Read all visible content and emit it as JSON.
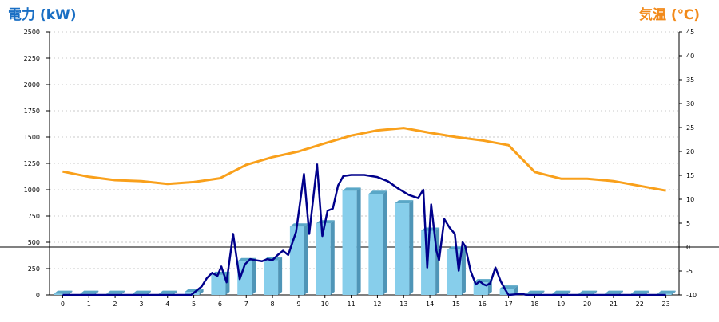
{
  "chart_data": {
    "type": "bar",
    "left_axis_title": "電力 (kW)",
    "right_axis_title": "気温 (℃)",
    "categories": [
      "0",
      "1",
      "2",
      "3",
      "4",
      "5",
      "6",
      "7",
      "8",
      "9",
      "10",
      "11",
      "12",
      "13",
      "14",
      "15",
      "16",
      "17",
      "18",
      "19",
      "20",
      "21",
      "22",
      "23"
    ],
    "y_left": {
      "min": 0,
      "max": 2500,
      "ticks": [
        0,
        250,
        500,
        750,
        1000,
        1250,
        1500,
        1750,
        2000,
        2250,
        2500
      ]
    },
    "y_right": {
      "min": -10,
      "max": 45,
      "ticks": [
        -10,
        -5,
        0,
        5,
        10,
        15,
        20,
        25,
        30,
        35,
        40,
        45
      ]
    },
    "grid": true,
    "reference_line_right_value": 0,
    "series": [
      {
        "kind": "bar",
        "axis": "left",
        "color": "#87ceeb",
        "values": [
          10,
          10,
          10,
          10,
          10,
          30,
          190,
          320,
          330,
          650,
          680,
          990,
          960,
          870,
          610,
          430,
          120,
          60,
          10,
          10,
          10,
          10,
          10,
          10
        ]
      },
      {
        "kind": "line",
        "axis": "left",
        "color": "#00008b",
        "points": [
          [
            0,
            0
          ],
          [
            1,
            0
          ],
          [
            2,
            0
          ],
          [
            3,
            0
          ],
          [
            4,
            0
          ],
          [
            4.9,
            0
          ],
          [
            5,
            20
          ],
          [
            5.3,
            80
          ],
          [
            5.5,
            160
          ],
          [
            5.7,
            210
          ],
          [
            5.9,
            180
          ],
          [
            6.05,
            270
          ],
          [
            6.25,
            120
          ],
          [
            6.5,
            580
          ],
          [
            6.75,
            150
          ],
          [
            6.95,
            290
          ],
          [
            7.15,
            340
          ],
          [
            7.35,
            330
          ],
          [
            7.6,
            320
          ],
          [
            7.8,
            340
          ],
          [
            8.0,
            330
          ],
          [
            8.2,
            380
          ],
          [
            8.4,
            420
          ],
          [
            8.6,
            380
          ],
          [
            8.9,
            600
          ],
          [
            9.2,
            1150
          ],
          [
            9.4,
            580
          ],
          [
            9.7,
            1240
          ],
          [
            9.9,
            560
          ],
          [
            10.1,
            800
          ],
          [
            10.3,
            820
          ],
          [
            10.5,
            1040
          ],
          [
            10.7,
            1130
          ],
          [
            11,
            1140
          ],
          [
            11.5,
            1140
          ],
          [
            12,
            1120
          ],
          [
            12.4,
            1080
          ],
          [
            12.8,
            1010
          ],
          [
            13.2,
            950
          ],
          [
            13.55,
            920
          ],
          [
            13.75,
            1000
          ],
          [
            13.9,
            260
          ],
          [
            14.05,
            860
          ],
          [
            14.25,
            420
          ],
          [
            14.35,
            330
          ],
          [
            14.55,
            720
          ],
          [
            14.75,
            640
          ],
          [
            14.95,
            580
          ],
          [
            15.1,
            230
          ],
          [
            15.25,
            500
          ],
          [
            15.35,
            460
          ],
          [
            15.55,
            230
          ],
          [
            15.75,
            100
          ],
          [
            15.9,
            130
          ],
          [
            16.05,
            100
          ],
          [
            16.15,
            90
          ],
          [
            16.3,
            110
          ],
          [
            16.5,
            260
          ],
          [
            16.7,
            130
          ],
          [
            16.9,
            40
          ],
          [
            17.0,
            0
          ],
          [
            17.5,
            10
          ],
          [
            17.7,
            0
          ],
          [
            18,
            0
          ],
          [
            19,
            0
          ],
          [
            20,
            0
          ],
          [
            21,
            0
          ],
          [
            22,
            0
          ],
          [
            23,
            0
          ]
        ]
      },
      {
        "kind": "line",
        "axis": "right",
        "color": "#f9a01b",
        "values": [
          15.8,
          14.7,
          14.0,
          13.8,
          13.2,
          13.6,
          14.4,
          17.2,
          18.8,
          20.0,
          21.7,
          23.3,
          24.4,
          24.9,
          23.9,
          23.0,
          22.3,
          21.3,
          15.7,
          14.3,
          14.3,
          13.8,
          12.8,
          11.8
        ]
      }
    ]
  }
}
